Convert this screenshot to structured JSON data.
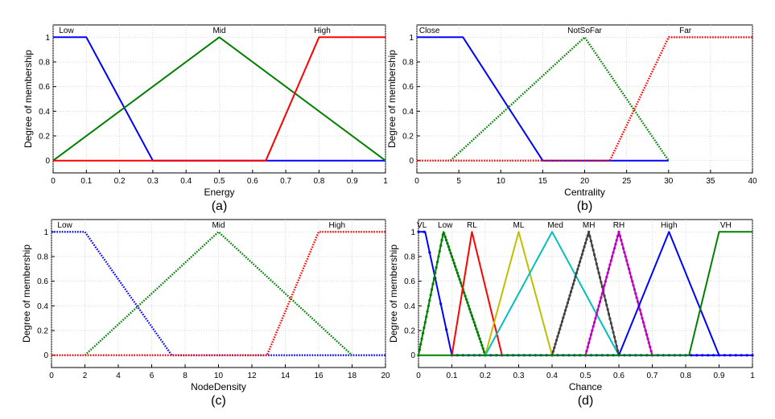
{
  "chart_data": [
    {
      "type": "line",
      "panel_label": "(a)",
      "xlabel": "Energy",
      "ylabel": "Degree of membership",
      "xlim": [
        0,
        1
      ],
      "ylim": [
        -0.1,
        1.1
      ],
      "xticks": [
        "0",
        "0.1",
        "0.2",
        "0.3",
        "0.4",
        "0.5",
        "0.6",
        "0.7",
        "0.8",
        "0.9",
        "1"
      ],
      "yticks": [
        "0",
        "0.2",
        "0.4",
        "0.6",
        "0.8",
        "1"
      ],
      "grid": true,
      "series": [
        {
          "name": "Low",
          "color": "#0000ff",
          "style": "solid",
          "x": [
            0,
            0.1,
            0.3,
            1
          ],
          "y": [
            1,
            1,
            0,
            0
          ],
          "label_x": 0.04
        },
        {
          "name": "Mid",
          "color": "#008000",
          "style": "solid",
          "x": [
            0,
            0.5,
            1
          ],
          "y": [
            0,
            1,
            0
          ],
          "label_x": 0.5
        },
        {
          "name": "High",
          "color": "#ff0000",
          "style": "solid",
          "x": [
            0,
            0.64,
            0.8,
            1
          ],
          "y": [
            0,
            0,
            1,
            1
          ],
          "label_x": 0.81
        }
      ]
    },
    {
      "type": "line",
      "panel_label": "(b)",
      "xlabel": "Centrality",
      "ylabel": "Degree of membership",
      "xlim": [
        0,
        40
      ],
      "ylim": [
        -0.1,
        1.1
      ],
      "xticks": [
        "0",
        "5",
        "10",
        "15",
        "20",
        "25",
        "30",
        "35",
        "40"
      ],
      "yticks": [
        "0",
        "0.2",
        "0.4",
        "0.6",
        "0.8",
        "1"
      ],
      "grid": true,
      "series": [
        {
          "name": "Close",
          "color": "#0000ff",
          "style": "solid",
          "x": [
            0,
            5.5,
            15,
            30
          ],
          "y": [
            1,
            1,
            0,
            0
          ],
          "label_x": 1.5
        },
        {
          "name": "NotSoFar",
          "color": "#008000",
          "style": "dotted",
          "x": [
            4,
            20,
            30
          ],
          "y": [
            0,
            1,
            0
          ],
          "label_x": 20
        },
        {
          "name": "Far",
          "color": "#ff0000",
          "style": "dotted",
          "x": [
            0,
            23,
            30,
            40
          ],
          "y": [
            0,
            0,
            1,
            1
          ],
          "label_x": 32
        }
      ]
    },
    {
      "type": "line",
      "panel_label": "(c)",
      "xlabel": "NodeDensity",
      "ylabel": "Degree of membership",
      "xlim": [
        0,
        20
      ],
      "ylim": [
        -0.1,
        1.1
      ],
      "xticks": [
        "0",
        "2",
        "4",
        "6",
        "8",
        "10",
        "12",
        "14",
        "16",
        "18",
        "20"
      ],
      "yticks": [
        "0",
        "0.2",
        "0.4",
        "0.6",
        "0.8",
        "1"
      ],
      "grid": true,
      "series": [
        {
          "name": "Low",
          "color": "#0000ff",
          "style": "dotted",
          "x": [
            0,
            2,
            7.2,
            20
          ],
          "y": [
            1,
            1,
            0,
            0
          ],
          "label_x": 0.8
        },
        {
          "name": "Mid",
          "color": "#008000",
          "style": "dotted",
          "x": [
            2,
            10,
            18
          ],
          "y": [
            0,
            1,
            0
          ],
          "label_x": 10
        },
        {
          "name": "High",
          "color": "#ff0000",
          "style": "dotted",
          "x": [
            0,
            12.9,
            16,
            20
          ],
          "y": [
            0,
            0,
            1,
            1
          ],
          "label_x": 17.1
        }
      ]
    },
    {
      "type": "line",
      "panel_label": "(d)",
      "xlabel": "Chance",
      "ylabel": "Degree of membership",
      "xlim": [
        0,
        1
      ],
      "ylim": [
        -0.1,
        1.1
      ],
      "xticks": [
        "0",
        "0.1",
        "0.2",
        "0.3",
        "0.4",
        "0.5",
        "0.6",
        "0.7",
        "0.8",
        "0.9",
        "1"
      ],
      "yticks": [
        "0",
        "0.2",
        "0.4",
        "0.6",
        "0.8",
        "1"
      ],
      "grid": true,
      "series": [
        {
          "name": "VL",
          "color": "#0000ff",
          "style": "markers",
          "x": [
            0,
            0.02,
            0.1,
            1
          ],
          "y": [
            1,
            1,
            0,
            0
          ],
          "label_x": 0.01
        },
        {
          "name": "Low",
          "color": "#008000",
          "style": "markers",
          "x": [
            0,
            0.075,
            0.2
          ],
          "y": [
            0,
            1,
            0
          ],
          "label_x": 0.08
        },
        {
          "name": "RL",
          "color": "#ff0000",
          "style": "solid",
          "x": [
            0.1,
            0.16,
            0.25
          ],
          "y": [
            0,
            1,
            0
          ],
          "label_x": 0.16
        },
        {
          "name": "ML",
          "color": "#bfbf00",
          "style": "solid",
          "x": [
            0.2,
            0.3,
            0.4
          ],
          "y": [
            0,
            1,
            0
          ],
          "label_x": 0.3
        },
        {
          "name": "Med",
          "color": "#00bfbf",
          "style": "solid",
          "x": [
            0.2,
            0.4,
            0.6
          ],
          "y": [
            0,
            1,
            0
          ],
          "label_x": 0.41
        },
        {
          "name": "MH",
          "color": "#404040",
          "style": "markers",
          "x": [
            0.4,
            0.51,
            0.6
          ],
          "y": [
            0,
            1,
            0
          ],
          "label_x": 0.51
        },
        {
          "name": "RH",
          "color": "#bf00bf",
          "style": "markers",
          "x": [
            0.5,
            0.6,
            0.7
          ],
          "y": [
            0,
            1,
            0
          ],
          "label_x": 0.6
        },
        {
          "name": "High",
          "color": "#0000ff",
          "style": "solid",
          "x": [
            0.6,
            0.75,
            0.9
          ],
          "y": [
            0,
            1,
            0
          ],
          "label_x": 0.75
        },
        {
          "name": "VH",
          "color": "#008000",
          "style": "solid",
          "x": [
            0,
            0.81,
            0.9,
            1
          ],
          "y": [
            0,
            0,
            1,
            1
          ],
          "label_x": 0.92
        }
      ]
    }
  ]
}
